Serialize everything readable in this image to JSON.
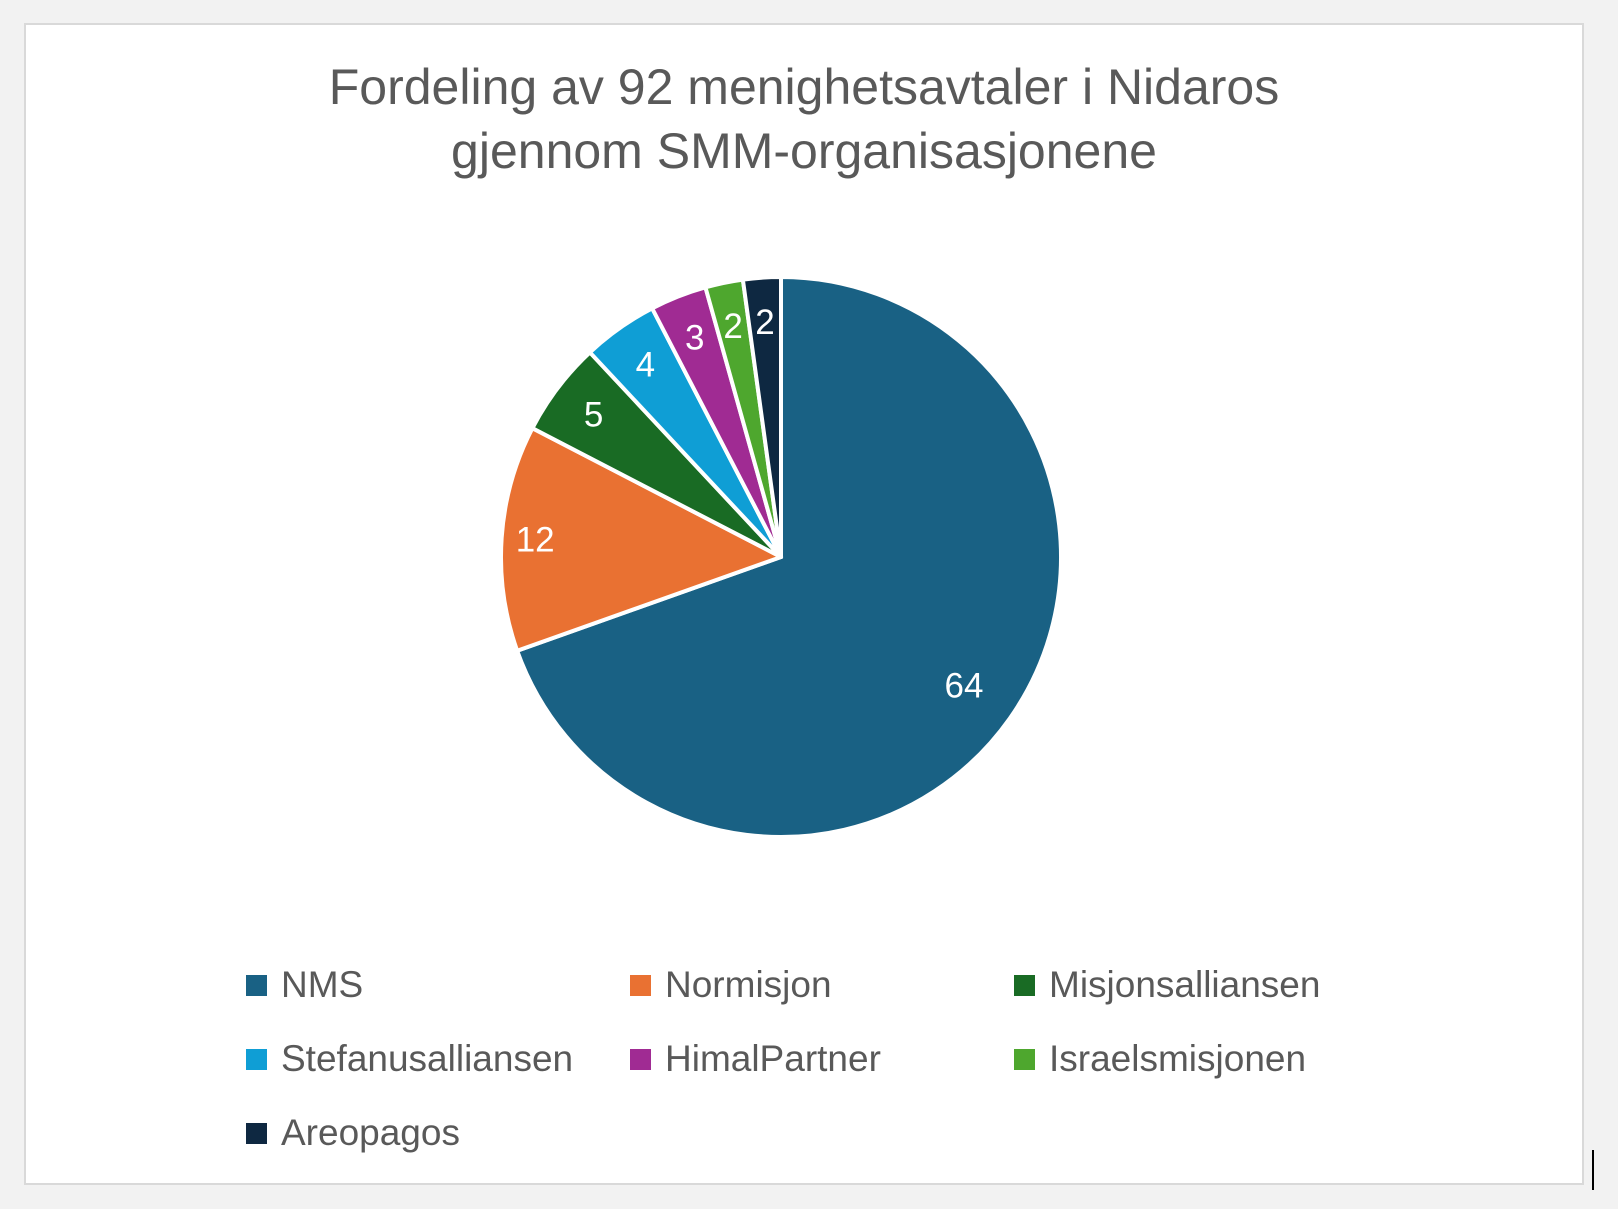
{
  "chart_data": {
    "type": "pie",
    "title": [
      "Fordeling av 92 menighetsavtaler i Nidaros",
      "gjennom SMM-organisasjonene"
    ],
    "categories": [
      "NMS",
      "Normisjon",
      "Misjonsalliansen",
      "Stefanusalliansen",
      "HimalPartner",
      "Israelsmisjonen",
      "Areopagos"
    ],
    "values": [
      64,
      12,
      5,
      4,
      3,
      2,
      2
    ],
    "colors": [
      "#196184",
      "#e97132",
      "#196b24",
      "#0f9ed5",
      "#a02b93",
      "#4ea72e",
      "#0e2841"
    ],
    "legend": "bottom"
  }
}
